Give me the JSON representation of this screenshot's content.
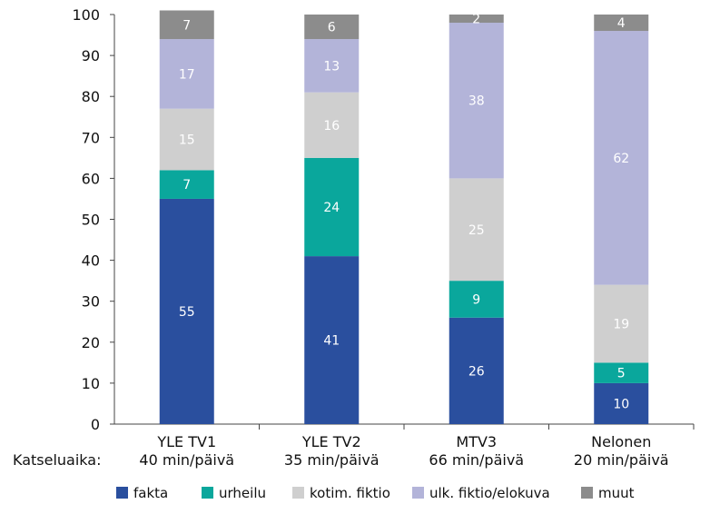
{
  "chart_data": {
    "type": "bar",
    "stacked": true,
    "title": "",
    "xlabel": "",
    "ylabel": "",
    "ylim": [
      0,
      100
    ],
    "yticks": [
      0,
      10,
      20,
      30,
      40,
      50,
      60,
      70,
      80,
      90,
      100
    ],
    "row_label": "Katseluaika:",
    "categories": [
      "YLE TV1",
      "YLE TV2",
      "MTV3",
      "Nelonen"
    ],
    "category_sublabels": [
      "40 min/päivä",
      "35 min/päivä",
      "66 min/päivä",
      "20 min/päivä"
    ],
    "series": [
      {
        "name": "fakta",
        "color": "#2a4f9e",
        "values": [
          55,
          41,
          26,
          10
        ]
      },
      {
        "name": "urheilu",
        "color": "#0aa79c",
        "values": [
          7,
          24,
          9,
          5
        ]
      },
      {
        "name": "kotim. fiktio",
        "color": "#cfcfcf",
        "values": [
          15,
          16,
          25,
          19
        ]
      },
      {
        "name": "ulk. fiktio/elokuva",
        "color": "#b3b4d9",
        "values": [
          17,
          13,
          38,
          62
        ]
      },
      {
        "name": "muut",
        "color": "#8c8c8c",
        "values": [
          7,
          6,
          2,
          4
        ]
      }
    ],
    "legend_position": "bottom",
    "grid": false
  }
}
